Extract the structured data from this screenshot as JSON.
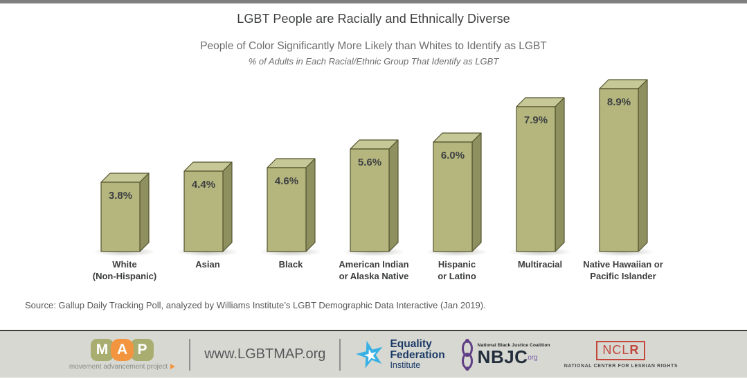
{
  "chart_data": {
    "type": "bar",
    "style": "3d-column",
    "title": "LGBT People are Racially and Ethnically Diverse",
    "subtitle": "People of Color Significantly More Likely than Whites to Identify as LGBT",
    "axis_note": "% of Adults in Each Racial/Ethnic Group That Identify as LGBT",
    "categories": [
      "White (Non-Hispanic)",
      "Asian",
      "Black",
      "American Indian or Alaska Native",
      "Hispanic or Latino",
      "Multiracial",
      "Native Hawaiian or Pacific Islander"
    ],
    "category_lines": [
      [
        "White",
        "(Non-Hispanic)"
      ],
      [
        "Asian"
      ],
      [
        "Black"
      ],
      [
        "American Indian",
        "or Alaska Native"
      ],
      [
        "Hispanic",
        "or Latino"
      ],
      [
        "Multiracial"
      ],
      [
        "Native Hawaiian or",
        "Pacific Islander"
      ]
    ],
    "values": [
      3.8,
      4.4,
      4.6,
      5.6,
      6.0,
      7.9,
      8.9
    ],
    "value_labels": [
      "3.8%",
      "4.4%",
      "4.6%",
      "5.6%",
      "6.0%",
      "7.9%",
      "8.9%"
    ],
    "ylim": [
      0,
      9.5
    ],
    "grid": false,
    "legend": false,
    "colors": {
      "front": "#b4b67e",
      "top": "#c7c897",
      "side": "#8f9060",
      "outline": "#53542e",
      "label": "#3f4142"
    }
  },
  "source": {
    "text": "Source: Gallup Daily Tracking Poll, analyzed by Williams Institute’s LGBT Demographic Data Interactive (Jan 2019)."
  },
  "footer": {
    "map_logo": {
      "letters": [
        "M",
        "A",
        "P"
      ],
      "caption": "movement advancement project",
      "olive": "#a9ad6f",
      "orange": "#f3953e"
    },
    "website": "www.LGBTMAP.org",
    "equality_federation": {
      "line1": "Equality",
      "line2": "Federation",
      "line3": "Institute",
      "star_blue": "#3ab1e4",
      "navy": "#1c3a66"
    },
    "nbjc": {
      "small_text": "National Black Justice Coalition",
      "acronym": "NBJC",
      "suffix": ".org",
      "purple": "#5f3f85"
    },
    "nclr": {
      "acronym_regular": "NCL",
      "acronym_bold": "R",
      "caption": "NATIONAL CENTER FOR LESBIAN RIGHTS",
      "red": "#c2473c"
    }
  }
}
